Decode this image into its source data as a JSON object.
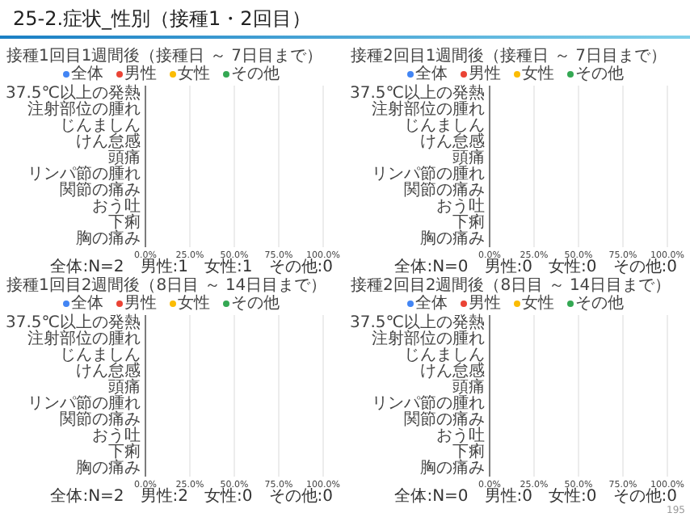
{
  "chart_data": [
    {
      "type": "bar",
      "orientation": "horizontal",
      "title": "25-2.症状_性別（接種1・2回目）",
      "subtitle": "接種1回目1週間後（接種日 ～ 7日目まで）",
      "categories": [
        "37.5℃以上の発熱",
        "注射部位の腫れ",
        "じんましん",
        "けん怠感",
        "頭痛",
        "リンパ節の腫れ",
        "関節の痛み",
        "おう吐",
        "下痢",
        "胸の痛み"
      ],
      "series": [
        {
          "name": "全体",
          "color": "#4285f4",
          "values": [
            0,
            0,
            0,
            0,
            0,
            0,
            0,
            0,
            0,
            0
          ]
        },
        {
          "name": "男性",
          "color": "#ea4335",
          "values": [
            0,
            0,
            0,
            0,
            0,
            0,
            0,
            0,
            0,
            0
          ]
        },
        {
          "name": "女性",
          "color": "#fbbc04",
          "values": [
            0,
            0,
            0,
            0,
            0,
            0,
            0,
            0,
            0,
            0
          ]
        },
        {
          "name": "その他",
          "color": "#34a853",
          "values": [
            0,
            0,
            0,
            0,
            0,
            0,
            0,
            0,
            0,
            0
          ]
        }
      ],
      "xlim": [
        0,
        100
      ],
      "xticks": [
        {
          "value": 0,
          "label": "0.0%"
        },
        {
          "value": 25,
          "label": "25.0%"
        },
        {
          "value": 50,
          "label": "50.0%"
        },
        {
          "value": 75,
          "label": "75.0%"
        },
        {
          "value": 100,
          "label": "100.0%"
        }
      ],
      "grid": "x",
      "legend": "top",
      "annotations": [
        "全体:N=2　男性:1　女性:1　その他:0"
      ]
    },
    {
      "type": "bar",
      "orientation": "horizontal",
      "title": "接種2回目1週間後（接種日 ～ 7日目まで）",
      "categories": [
        "37.5℃以上の発熱",
        "注射部位の腫れ",
        "じんましん",
        "けん怠感",
        "頭痛",
        "リンパ節の腫れ",
        "関節の痛み",
        "おう吐",
        "下痢",
        "胸の痛み"
      ],
      "series": [
        {
          "name": "全体",
          "color": "#4285f4",
          "values": [
            0,
            0,
            0,
            0,
            0,
            0,
            0,
            0,
            0,
            0
          ]
        },
        {
          "name": "男性",
          "color": "#ea4335",
          "values": [
            0,
            0,
            0,
            0,
            0,
            0,
            0,
            0,
            0,
            0
          ]
        },
        {
          "name": "女性",
          "color": "#fbbc04",
          "values": [
            0,
            0,
            0,
            0,
            0,
            0,
            0,
            0,
            0,
            0
          ]
        },
        {
          "name": "その他",
          "color": "#34a853",
          "values": [
            0,
            0,
            0,
            0,
            0,
            0,
            0,
            0,
            0,
            0
          ]
        }
      ],
      "xlim": [
        0,
        100
      ],
      "xticks": [
        {
          "value": 0,
          "label": "0.0%"
        },
        {
          "value": 25,
          "label": "25.0%"
        },
        {
          "value": 50,
          "label": "50.0%"
        },
        {
          "value": 75,
          "label": "75.0%"
        },
        {
          "value": 100,
          "label": "100.0%"
        }
      ],
      "grid": "x",
      "legend": "top",
      "annotations": [
        "全体:N=0　男性:0　女性:0　その他:0"
      ]
    },
    {
      "type": "bar",
      "orientation": "horizontal",
      "title": "接種1回目2週間後（8日目 ～ 14日目まで）",
      "categories": [
        "37.5℃以上の発熱",
        "注射部位の腫れ",
        "じんましん",
        "けん怠感",
        "頭痛",
        "リンパ節の腫れ",
        "関節の痛み",
        "おう吐",
        "下痢",
        "胸の痛み"
      ],
      "series": [
        {
          "name": "全体",
          "color": "#4285f4",
          "values": [
            0,
            0,
            0,
            0,
            0,
            0,
            0,
            0,
            0,
            0
          ]
        },
        {
          "name": "男性",
          "color": "#ea4335",
          "values": [
            0,
            0,
            0,
            0,
            0,
            0,
            0,
            0,
            0,
            0
          ]
        },
        {
          "name": "女性",
          "color": "#fbbc04",
          "values": [
            0,
            0,
            0,
            0,
            0,
            0,
            0,
            0,
            0,
            0
          ]
        },
        {
          "name": "その他",
          "color": "#34a853",
          "values": [
            0,
            0,
            0,
            0,
            0,
            0,
            0,
            0,
            0,
            0
          ]
        }
      ],
      "xlim": [
        0,
        100
      ],
      "xticks": [
        {
          "value": 0,
          "label": "0.0%"
        },
        {
          "value": 25,
          "label": "25.0%"
        },
        {
          "value": 50,
          "label": "50.0%"
        },
        {
          "value": 75,
          "label": "75.0%"
        },
        {
          "value": 100,
          "label": "100.0%"
        }
      ],
      "grid": "x",
      "legend": "top",
      "annotations": [
        "全体:N=2　男性:2　女性:0　その他:0"
      ]
    },
    {
      "type": "bar",
      "orientation": "horizontal",
      "title": "接種2回目2週間後（8日目 ～ 14日目まで）",
      "categories": [
        "37.5℃以上の発熱",
        "注射部位の腫れ",
        "じんましん",
        "けん怠感",
        "頭痛",
        "リンパ節の腫れ",
        "関節の痛み",
        "おう吐",
        "下痢",
        "胸の痛み"
      ],
      "series": [
        {
          "name": "全体",
          "color": "#4285f4",
          "values": [
            0,
            0,
            0,
            0,
            0,
            0,
            0,
            0,
            0,
            0
          ]
        },
        {
          "name": "男性",
          "color": "#ea4335",
          "values": [
            0,
            0,
            0,
            0,
            0,
            0,
            0,
            0,
            0,
            0
          ]
        },
        {
          "name": "女性",
          "color": "#fbbc04",
          "values": [
            0,
            0,
            0,
            0,
            0,
            0,
            0,
            0,
            0,
            0
          ]
        },
        {
          "name": "その他",
          "color": "#34a853",
          "values": [
            0,
            0,
            0,
            0,
            0,
            0,
            0,
            0,
            0,
            0
          ]
        }
      ],
      "xlim": [
        0,
        100
      ],
      "xticks": [
        {
          "value": 0,
          "label": "0.0%"
        },
        {
          "value": 25,
          "label": "25.0%"
        },
        {
          "value": 50,
          "label": "50.0%"
        },
        {
          "value": 75,
          "label": "75.0%"
        },
        {
          "value": 100,
          "label": "100.0%"
        }
      ],
      "grid": "x",
      "legend": "top",
      "annotations": [
        "全体:N=0　男性:0　女性:0　その他:0",
        "195"
      ]
    }
  ]
}
